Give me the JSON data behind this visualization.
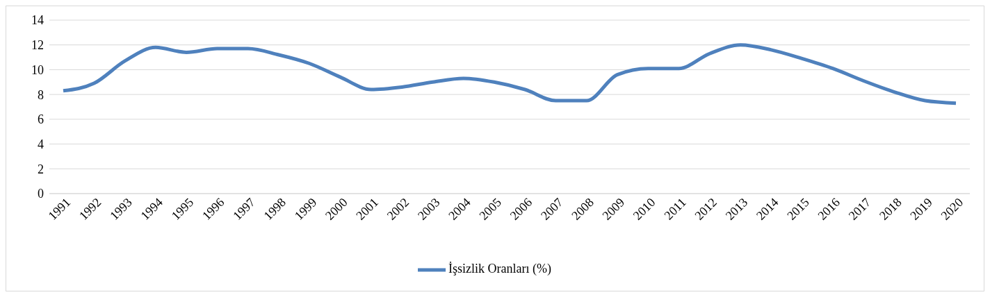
{
  "chart_data": {
    "type": "line",
    "categories": [
      "1991",
      "1992",
      "1993",
      "1994",
      "1995",
      "1996",
      "1997",
      "1998",
      "1999",
      "2000",
      "2001",
      "2002",
      "2003",
      "2004",
      "2005",
      "2006",
      "2007",
      "2008",
      "2009",
      "2010",
      "2011",
      "2012",
      "2013",
      "2014",
      "2015",
      "2016",
      "2017",
      "2018",
      "2019",
      "2020"
    ],
    "series": [
      {
        "name": "İşsizlik Oranları (%)",
        "color": "#4f81bd",
        "values": [
          8.3,
          8.9,
          10.7,
          11.8,
          11.4,
          11.7,
          11.7,
          11.2,
          10.5,
          9.4,
          8.4,
          8.6,
          9.0,
          9.3,
          9.0,
          8.4,
          7.5,
          7.5,
          9.6,
          10.1,
          10.1,
          11.3,
          12.0,
          11.6,
          10.9,
          10.1,
          9.1,
          8.2,
          7.5,
          7.3
        ]
      }
    ],
    "ylim": [
      0,
      14
    ],
    "yticks": [
      0,
      2,
      4,
      6,
      8,
      10,
      12,
      14
    ],
    "grid": "y",
    "legend": "bottom",
    "marker": "none",
    "line_style": "solid"
  }
}
